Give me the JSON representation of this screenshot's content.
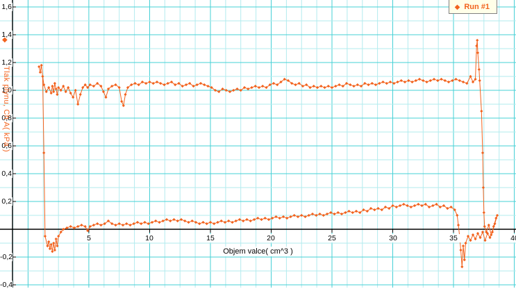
{
  "colors": {
    "accent": "#f2621d",
    "grid_minor": "#b2ebee",
    "grid_major": "#45d0d6",
    "axis": "#000000",
    "background": "#ffffff",
    "legend_bg": "#ffffe8"
  },
  "ui": {
    "axis_marker_glyph": "◆",
    "legend_marker_glyph": "◆"
  },
  "chart_data": {
    "type": "scatter",
    "title": "",
    "xlabel": "Objem valce( cm^3 )",
    "ylabel": "Tlak plynu, Ch A( kPa )",
    "xlim": [
      -2.31,
      40.14
    ],
    "ylim": [
      -0.42,
      1.65
    ],
    "grid": true,
    "legend_position": "top-right",
    "x_ticks": [
      {
        "label": "5",
        "value": 5
      },
      {
        "label": "10",
        "value": 10
      },
      {
        "label": "15",
        "value": 15
      },
      {
        "label": "20",
        "value": 20
      },
      {
        "label": "25",
        "value": 25
      },
      {
        "label": "30",
        "value": 30
      },
      {
        "label": "35",
        "value": 35
      },
      {
        "label": "40",
        "value": 40
      }
    ],
    "y_ticks": [
      {
        "label": "1,6",
        "value": 1.6
      },
      {
        "label": "1,4",
        "value": 1.4
      },
      {
        "label": "1,2",
        "value": 1.2
      },
      {
        "label": "1,0",
        "value": 1.0
      },
      {
        "label": "0,8",
        "value": 0.8
      },
      {
        "label": "0,6",
        "value": 0.6
      },
      {
        "label": "0,4",
        "value": 0.4
      },
      {
        "label": "0,2",
        "value": 0.2
      },
      {
        "label": "-0,2",
        "value": -0.2
      },
      {
        "label": "-0,4",
        "value": -0.4
      }
    ],
    "series": [
      {
        "name": "Run #1",
        "color": "#f2621d",
        "marker": "diamond",
        "points": [
          [
            0.9,
            1.17
          ],
          [
            1.0,
            1.13
          ],
          [
            1.1,
            1.18
          ],
          [
            1.2,
            1.1
          ],
          [
            1.3,
            1.04
          ],
          [
            1.5,
            0.99
          ],
          [
            1.7,
            1.02
          ],
          [
            1.9,
            0.98
          ],
          [
            2.0,
            1.03
          ],
          [
            2.1,
            0.99
          ],
          [
            2.2,
            1.05
          ],
          [
            2.3,
            1.01
          ],
          [
            2.4,
            0.97
          ],
          [
            2.5,
            1.02
          ],
          [
            2.7,
            1.0
          ],
          [
            2.9,
            1.03
          ],
          [
            3.1,
            0.99
          ],
          [
            3.3,
            1.02
          ],
          [
            3.5,
            0.98
          ],
          [
            3.7,
            0.95
          ],
          [
            3.9,
            1.0
          ],
          [
            4.1,
            0.9
          ],
          [
            4.3,
            0.97
          ],
          [
            4.5,
            1.02
          ],
          [
            4.7,
            1.04
          ],
          [
            4.9,
            1.02
          ],
          [
            5.1,
            1.04
          ],
          [
            5.4,
            1.03
          ],
          [
            5.7,
            1.05
          ],
          [
            6.0,
            1.03
          ],
          [
            6.2,
            0.99
          ],
          [
            6.4,
            0.95
          ],
          [
            6.6,
            1.01
          ],
          [
            6.9,
            1.03
          ],
          [
            7.2,
            1.04
          ],
          [
            7.5,
            1.02
          ],
          [
            7.7,
            0.92
          ],
          [
            7.85,
            0.89
          ],
          [
            8.0,
            0.97
          ],
          [
            8.2,
            1.02
          ],
          [
            8.5,
            1.04
          ],
          [
            8.8,
            1.05
          ],
          [
            9.1,
            1.04
          ],
          [
            9.4,
            1.06
          ],
          [
            9.7,
            1.05
          ],
          [
            10.0,
            1.06
          ],
          [
            10.3,
            1.05
          ],
          [
            10.6,
            1.06
          ],
          [
            10.9,
            1.05
          ],
          [
            11.2,
            1.04
          ],
          [
            11.5,
            1.05
          ],
          [
            11.8,
            1.06
          ],
          [
            12.1,
            1.04
          ],
          [
            12.4,
            1.05
          ],
          [
            12.7,
            1.03
          ],
          [
            13.0,
            1.04
          ],
          [
            13.3,
            1.05
          ],
          [
            13.6,
            1.03
          ],
          [
            13.9,
            1.04
          ],
          [
            14.2,
            1.05
          ],
          [
            14.5,
            1.04
          ],
          [
            14.8,
            1.03
          ],
          [
            15.1,
            1.02
          ],
          [
            15.4,
            1.0
          ],
          [
            15.7,
            0.99
          ],
          [
            16.0,
            1.01
          ],
          [
            16.3,
            1.0
          ],
          [
            16.6,
            0.99
          ],
          [
            16.9,
            1.0
          ],
          [
            17.2,
            1.01
          ],
          [
            17.5,
            1.0
          ],
          [
            17.8,
            1.02
          ],
          [
            18.1,
            1.01
          ],
          [
            18.4,
            1.02
          ],
          [
            18.7,
            1.03
          ],
          [
            19.0,
            1.02
          ],
          [
            19.3,
            1.03
          ],
          [
            19.6,
            1.02
          ],
          [
            19.9,
            1.04
          ],
          [
            20.2,
            1.05
          ],
          [
            20.5,
            1.04
          ],
          [
            20.8,
            1.06
          ],
          [
            21.1,
            1.08
          ],
          [
            21.4,
            1.07
          ],
          [
            21.7,
            1.05
          ],
          [
            22.0,
            1.04
          ],
          [
            22.3,
            1.05
          ],
          [
            22.6,
            1.03
          ],
          [
            22.9,
            1.04
          ],
          [
            23.2,
            1.02
          ],
          [
            23.5,
            1.03
          ],
          [
            23.8,
            1.02
          ],
          [
            24.1,
            1.03
          ],
          [
            24.4,
            1.02
          ],
          [
            24.7,
            1.03
          ],
          [
            25.0,
            1.02
          ],
          [
            25.3,
            1.03
          ],
          [
            25.6,
            1.04
          ],
          [
            25.9,
            1.03
          ],
          [
            26.2,
            1.05
          ],
          [
            26.5,
            1.04
          ],
          [
            26.8,
            1.03
          ],
          [
            27.1,
            1.04
          ],
          [
            27.4,
            1.03
          ],
          [
            27.7,
            1.05
          ],
          [
            28.0,
            1.04
          ],
          [
            28.3,
            1.05
          ],
          [
            28.6,
            1.04
          ],
          [
            28.9,
            1.05
          ],
          [
            29.2,
            1.06
          ],
          [
            29.5,
            1.05
          ],
          [
            29.8,
            1.06
          ],
          [
            30.1,
            1.05
          ],
          [
            30.4,
            1.06
          ],
          [
            30.7,
            1.07
          ],
          [
            31.0,
            1.06
          ],
          [
            31.3,
            1.07
          ],
          [
            31.6,
            1.06
          ],
          [
            31.9,
            1.07
          ],
          [
            32.2,
            1.08
          ],
          [
            32.5,
            1.07
          ],
          [
            32.8,
            1.06
          ],
          [
            33.1,
            1.07
          ],
          [
            33.4,
            1.08
          ],
          [
            33.7,
            1.07
          ],
          [
            34.0,
            1.08
          ],
          [
            34.3,
            1.07
          ],
          [
            34.6,
            1.06
          ],
          [
            34.9,
            1.07
          ],
          [
            35.2,
            1.08
          ],
          [
            35.5,
            1.07
          ],
          [
            35.8,
            1.06
          ],
          [
            36.1,
            1.05
          ],
          [
            36.4,
            1.1
          ],
          [
            36.6,
            1.06
          ],
          [
            36.8,
            1.08
          ],
          [
            36.9,
            1.32
          ],
          [
            36.95,
            1.36
          ],
          [
            37.0,
            1.27
          ],
          [
            37.1,
            1.15
          ],
          [
            37.15,
            1.07
          ],
          [
            37.3,
            0.85
          ],
          [
            37.4,
            0.55
          ],
          [
            37.45,
            0.3
          ],
          [
            37.5,
            0.12
          ],
          [
            37.55,
            0.02
          ],
          [
            37.7,
            -0.02
          ],
          [
            37.9,
            0.03
          ],
          [
            38.1,
            -0.04
          ],
          [
            38.3,
            0.02
          ],
          [
            38.5,
            0.08
          ],
          [
            38.6,
            0.1
          ],
          [
            38.4,
            0.04
          ],
          [
            38.2,
            -0.02
          ],
          [
            38.0,
            -0.06
          ],
          [
            37.8,
            -0.03
          ],
          [
            37.6,
            -0.08
          ],
          [
            37.4,
            -0.02
          ],
          [
            37.2,
            -0.06
          ],
          [
            37.0,
            -0.03
          ],
          [
            36.8,
            -0.07
          ],
          [
            36.6,
            -0.04
          ],
          [
            36.4,
            -0.08
          ],
          [
            36.2,
            -0.05
          ],
          [
            36.0,
            -0.1
          ],
          [
            35.9,
            -0.22
          ],
          [
            35.8,
            -0.12
          ],
          [
            35.7,
            -0.27
          ],
          [
            35.6,
            -0.15
          ],
          [
            35.5,
            -0.05
          ],
          [
            35.4,
            0.03
          ],
          [
            35.3,
            0.1
          ],
          [
            35.1,
            0.14
          ],
          [
            34.8,
            0.16
          ],
          [
            34.5,
            0.15
          ],
          [
            34.2,
            0.17
          ],
          [
            33.9,
            0.16
          ],
          [
            33.6,
            0.18
          ],
          [
            33.3,
            0.17
          ],
          [
            33.0,
            0.16
          ],
          [
            32.7,
            0.18
          ],
          [
            32.4,
            0.17
          ],
          [
            32.1,
            0.18
          ],
          [
            31.8,
            0.17
          ],
          [
            31.5,
            0.16
          ],
          [
            31.2,
            0.17
          ],
          [
            30.9,
            0.18
          ],
          [
            30.6,
            0.17
          ],
          [
            30.3,
            0.16
          ],
          [
            30.0,
            0.17
          ],
          [
            29.7,
            0.15
          ],
          [
            29.4,
            0.16
          ],
          [
            29.1,
            0.14
          ],
          [
            28.8,
            0.15
          ],
          [
            28.5,
            0.14
          ],
          [
            28.2,
            0.15
          ],
          [
            27.9,
            0.13
          ],
          [
            27.6,
            0.14
          ],
          [
            27.3,
            0.12
          ],
          [
            27.0,
            0.13
          ],
          [
            26.7,
            0.12
          ],
          [
            26.4,
            0.13
          ],
          [
            26.1,
            0.12
          ],
          [
            25.8,
            0.11
          ],
          [
            25.5,
            0.12
          ],
          [
            25.2,
            0.11
          ],
          [
            24.9,
            0.12
          ],
          [
            24.6,
            0.11
          ],
          [
            24.3,
            0.1
          ],
          [
            24.0,
            0.11
          ],
          [
            23.7,
            0.1
          ],
          [
            23.4,
            0.11
          ],
          [
            23.1,
            0.1
          ],
          [
            22.8,
            0.09
          ],
          [
            22.5,
            0.1
          ],
          [
            22.2,
            0.09
          ],
          [
            21.9,
            0.1
          ],
          [
            21.6,
            0.09
          ],
          [
            21.3,
            0.08
          ],
          [
            21.0,
            0.09
          ],
          [
            20.7,
            0.08
          ],
          [
            20.4,
            0.09
          ],
          [
            20.1,
            0.08
          ],
          [
            19.8,
            0.07
          ],
          [
            19.5,
            0.08
          ],
          [
            19.2,
            0.07
          ],
          [
            18.9,
            0.08
          ],
          [
            18.6,
            0.07
          ],
          [
            18.3,
            0.06
          ],
          [
            18.0,
            0.07
          ],
          [
            17.7,
            0.06
          ],
          [
            17.4,
            0.07
          ],
          [
            17.1,
            0.06
          ],
          [
            16.8,
            0.05
          ],
          [
            16.5,
            0.06
          ],
          [
            16.2,
            0.05
          ],
          [
            15.9,
            0.06
          ],
          [
            15.6,
            0.05
          ],
          [
            15.3,
            0.04
          ],
          [
            15.0,
            0.05
          ],
          [
            14.7,
            0.04
          ],
          [
            14.4,
            0.05
          ],
          [
            14.1,
            0.04
          ],
          [
            13.8,
            0.05
          ],
          [
            13.5,
            0.06
          ],
          [
            13.2,
            0.05
          ],
          [
            12.9,
            0.06
          ],
          [
            12.6,
            0.07
          ],
          [
            12.3,
            0.06
          ],
          [
            12.0,
            0.07
          ],
          [
            11.7,
            0.06
          ],
          [
            11.4,
            0.07
          ],
          [
            11.1,
            0.06
          ],
          [
            10.8,
            0.05
          ],
          [
            10.5,
            0.06
          ],
          [
            10.2,
            0.05
          ],
          [
            9.9,
            0.04
          ],
          [
            9.6,
            0.05
          ],
          [
            9.3,
            0.04
          ],
          [
            9.0,
            0.05
          ],
          [
            8.7,
            0.04
          ],
          [
            8.4,
            0.03
          ],
          [
            8.1,
            0.04
          ],
          [
            7.8,
            0.03
          ],
          [
            7.5,
            0.04
          ],
          [
            7.2,
            0.03
          ],
          [
            6.9,
            0.04
          ],
          [
            6.6,
            0.06
          ],
          [
            6.3,
            0.04
          ],
          [
            6.0,
            0.03
          ],
          [
            5.7,
            0.04
          ],
          [
            5.4,
            0.03
          ],
          [
            5.1,
            0.02
          ],
          [
            4.9,
            -0.01
          ],
          [
            4.7,
            0.02
          ],
          [
            4.4,
            0.03
          ],
          [
            4.1,
            0.02
          ],
          [
            3.8,
            0.01
          ],
          [
            3.5,
            0.02
          ],
          [
            3.2,
            0.01
          ],
          [
            2.9,
            0.0
          ],
          [
            2.7,
            -0.02
          ],
          [
            2.5,
            -0.05
          ],
          [
            2.4,
            -0.12
          ],
          [
            2.3,
            -0.07
          ],
          [
            2.2,
            -0.15
          ],
          [
            2.1,
            -0.1
          ],
          [
            2.0,
            -0.16
          ],
          [
            1.9,
            -0.11
          ],
          [
            1.8,
            -0.14
          ],
          [
            1.7,
            -0.09
          ],
          [
            1.6,
            -0.12
          ],
          [
            1.4,
            -0.05
          ],
          [
            1.3,
            0.55
          ],
          [
            1.2,
            1.1
          ]
        ]
      }
    ]
  }
}
